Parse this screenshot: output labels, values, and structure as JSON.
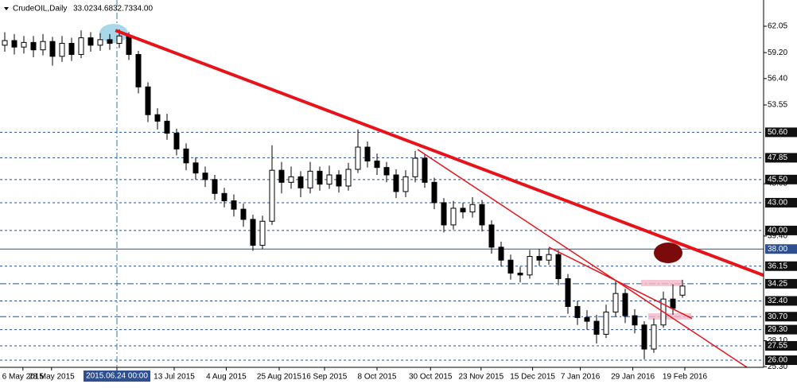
{
  "chart_data": {
    "type": "candlestick",
    "header": {
      "symbol": "CrudeOIL,Daily",
      "ohlc": [
        "33.02",
        "34.68",
        "32.73",
        "34.00"
      ]
    },
    "color": "#000000",
    "open": [
      60.0,
      60.5,
      59.8,
      60.3,
      59.5,
      60.4,
      58.8,
      60.2,
      59.0,
      60.8,
      60.0,
      60.6,
      60.2,
      61.0,
      59.0,
      55.5,
      52.5,
      51.8,
      50.5,
      48.8,
      47.3,
      46.2,
      45.5,
      44.0,
      43.2,
      42.3,
      41.2,
      38.4,
      41.0,
      46.5,
      45.2,
      45.8,
      44.6,
      46.4,
      45.0,
      46.0,
      44.8,
      46.6,
      49.0,
      47.5,
      46.8,
      46.0,
      44.2,
      45.8,
      47.8,
      45.2,
      43.0,
      40.6,
      42.4,
      42.0,
      42.8,
      40.6,
      38.2,
      36.8,
      35.4,
      35.2,
      37.2,
      36.8,
      37.4,
      34.8,
      31.8,
      30.6,
      30.2,
      28.8,
      31.2,
      33.2,
      30.8,
      29.8,
      27.2,
      29.8,
      32.6,
      33.02
    ],
    "high": [
      61.4,
      61.2,
      61.0,
      61.0,
      61.2,
      60.9,
      61.0,
      60.8,
      61.6,
      61.4,
      61.3,
      61.2,
      61.7,
      61.4,
      59.4,
      56.0,
      53.2,
      52.6,
      51.0,
      49.4,
      47.9,
      46.9,
      46.0,
      44.6,
      43.9,
      42.9,
      41.7,
      41.6,
      49.2,
      47.4,
      46.9,
      46.4,
      47.4,
      46.9,
      47.0,
      46.5,
      47.3,
      50.9,
      49.6,
      48.3,
      47.4,
      46.6,
      46.5,
      48.6,
      48.2,
      45.7,
      43.5,
      43.2,
      43.0,
      43.6,
      43.3,
      41.1,
      38.8,
      37.4,
      36.1,
      37.9,
      38.0,
      38.1,
      37.9,
      35.3,
      32.4,
      31.4,
      30.9,
      32.0,
      34.5,
      33.7,
      31.5,
      30.2,
      30.5,
      33.4,
      34.2,
      34.68
    ],
    "low": [
      59.3,
      59.0,
      59.1,
      58.7,
      58.9,
      57.8,
      58.2,
      58.3,
      58.6,
      59.3,
      59.4,
      59.5,
      59.7,
      58.4,
      54.8,
      51.7,
      50.9,
      49.8,
      48.1,
      46.5,
      45.5,
      44.7,
      43.3,
      42.5,
      41.5,
      40.4,
      37.8,
      38.0,
      40.6,
      44.0,
      44.5,
      43.6,
      44.0,
      44.3,
      44.5,
      44.1,
      44.3,
      46.2,
      46.8,
      46.0,
      45.2,
      43.5,
      43.6,
      45.2,
      44.6,
      42.3,
      39.8,
      40.1,
      41.3,
      41.4,
      39.9,
      37.5,
      36.1,
      34.7,
      34.4,
      34.8,
      36.2,
      36.3,
      34.1,
      31.0,
      29.8,
      29.3,
      27.8,
      28.4,
      30.7,
      30.0,
      28.9,
      26.1,
      26.8,
      29.5,
      30.9,
      32.73
    ],
    "close": [
      60.5,
      59.8,
      60.3,
      59.5,
      60.4,
      58.8,
      60.2,
      59.0,
      60.8,
      60.0,
      60.6,
      60.2,
      61.0,
      59.0,
      55.5,
      52.5,
      51.8,
      50.5,
      48.8,
      47.3,
      46.2,
      45.5,
      44.0,
      43.2,
      42.3,
      41.2,
      38.4,
      41.0,
      46.5,
      45.2,
      45.8,
      44.6,
      46.4,
      45.0,
      46.0,
      44.8,
      46.6,
      49.0,
      47.5,
      46.8,
      46.0,
      44.2,
      45.8,
      47.8,
      45.2,
      43.0,
      40.6,
      42.4,
      42.0,
      42.8,
      40.6,
      38.2,
      36.8,
      35.4,
      35.2,
      37.2,
      36.8,
      37.4,
      34.8,
      31.8,
      30.6,
      30.2,
      28.8,
      31.2,
      33.2,
      30.8,
      29.8,
      27.2,
      29.8,
      32.6,
      31.6,
      34.0
    ],
    "xlim": [
      -0.5,
      79.5
    ],
    "xticks": [
      {
        "value": 1.9,
        "label": "6 May 2015"
      },
      {
        "value": 4.9,
        "label": "28 May 2015"
      },
      {
        "value": 11.75,
        "label": "2015.06.24 00:00"
      },
      {
        "value": 17.75,
        "label": "13 Jul 2015"
      },
      {
        "value": 23.2,
        "label": "4 Aug 2015"
      },
      {
        "value": 28.75,
        "label": "25 Aug 2015"
      },
      {
        "value": 33.5,
        "label": "16 Sep 2015"
      },
      {
        "value": 39,
        "label": "8 Oct 2015"
      },
      {
        "value": 44.6,
        "label": "30 Oct 2015"
      },
      {
        "value": 49.9,
        "label": "23 Nov 2015"
      },
      {
        "value": 55.3,
        "label": "15 Dec 2015"
      },
      {
        "value": 60.3,
        "label": "7 Jan 2016"
      },
      {
        "value": 65.8,
        "label": "29 Jan 2016"
      },
      {
        "value": 71.25,
        "label": "19 Feb 2016"
      }
    ],
    "highlight_xtick": 2,
    "ylim": [
      25.23,
      64.88
    ],
    "yticks": [
      62.05,
      {
        "value": 59.2,
        "label": "59.20"
      },
      {
        "value": 56.4,
        "label": "56.40"
      },
      53.55,
      45.05,
      {
        "value": 39.4,
        "label": "39.40"
      },
      {
        "value": 28.1,
        "label": "28.10"
      },
      {
        "value": 25.3,
        "label": "25.30"
      }
    ],
    "levels": [
      {
        "value": 50.6,
        "label": "50.60",
        "style": "dash"
      },
      {
        "value": 47.85,
        "label": "47.85",
        "style": "dash"
      },
      {
        "value": 45.5,
        "label": "45.50",
        "style": "dash"
      },
      {
        "value": 43,
        "label": "43.00",
        "style": "dash"
      },
      {
        "value": 40,
        "label": "40.00",
        "style": "dash"
      },
      {
        "value": 38,
        "label": "38.00",
        "style": "solid"
      },
      {
        "value": 36.15,
        "label": "36.15",
        "style": "dash"
      },
      {
        "value": 34.25,
        "label": "34.25",
        "style": "dashdot"
      },
      {
        "value": 32.4,
        "label": "32.40",
        "style": "dash"
      },
      {
        "value": 30.7,
        "label": "30.70",
        "style": "dashdot"
      },
      {
        "value": 29.3,
        "label": "29.30",
        "style": "dash"
      },
      {
        "value": 27.55,
        "label": "27.55",
        "style": "dash"
      },
      {
        "value": 26,
        "label": "26.00",
        "style": "dash"
      }
    ],
    "level_color": "#2f4f8f",
    "trendlines": [
      {
        "x": [
          11.6,
          83
        ],
        "y": [
          61.6,
          33.8
        ],
        "width": 4,
        "color": "#e8121a"
      },
      {
        "x": [
          43.25,
          77.8
        ],
        "y": [
          48.75,
          25.2
        ],
        "width": 1.5,
        "color": "#e8121a"
      },
      {
        "x": [
          57,
          72
        ],
        "y": [
          38.2,
          30.5
        ],
        "width": 1.5,
        "color": "#e8121a"
      }
    ]
  }
}
